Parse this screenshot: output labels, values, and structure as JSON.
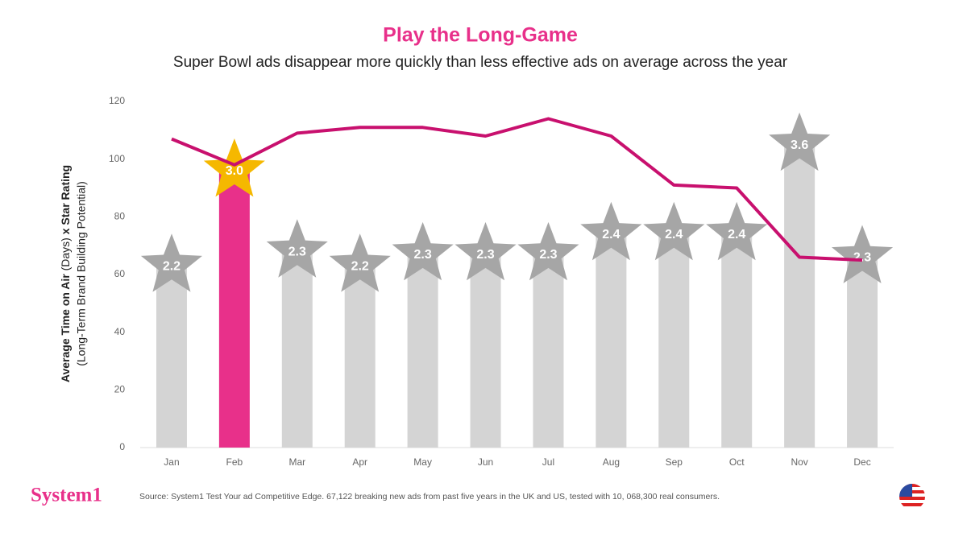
{
  "chart_data": {
    "type": "bar-line",
    "title": "Play the Long-Game",
    "subtitle": "Super Bowl ads disappear more quickly than less effective ads on average across the year",
    "y_label_bold_1": "Average Time on Air",
    "y_label_unit": "(Days)",
    "y_label_bold_2": "x Star Rating",
    "y_label_line_2": "(Long-Term Brand Building Potential)",
    "categories": [
      "Jan",
      "Feb",
      "Mar",
      "Apr",
      "May",
      "Jun",
      "Jul",
      "Aug",
      "Sep",
      "Oct",
      "Nov",
      "Dec"
    ],
    "bars": {
      "values": [
        63,
        96,
        68,
        63,
        67,
        67,
        67,
        74,
        74,
        74,
        105,
        66
      ],
      "colors": [
        "#d4d4d4",
        "#e8308a",
        "#d4d4d4",
        "#d4d4d4",
        "#d4d4d4",
        "#d4d4d4",
        "#d4d4d4",
        "#d4d4d4",
        "#d4d4d4",
        "#d4d4d4",
        "#d4d4d4",
        "#d4d4d4"
      ]
    },
    "stars": [
      {
        "value": 2.2,
        "label": "2.2"
      },
      {
        "value": 3.0,
        "label": "3.0"
      },
      {
        "value": 2.3,
        "label": "2.3"
      },
      {
        "value": 2.2,
        "label": "2.2"
      },
      {
        "value": 2.3,
        "label": "2.3"
      },
      {
        "value": 2.3,
        "label": "2.3"
      },
      {
        "value": 2.3,
        "label": "2.3"
      },
      {
        "value": 2.4,
        "label": "2.4"
      },
      {
        "value": 2.4,
        "label": "2.4"
      },
      {
        "value": 2.4,
        "label": "2.4"
      },
      {
        "value": 3.6,
        "label": "3.6"
      },
      {
        "value": 2.3,
        "label": "2.3"
      }
    ],
    "star_colors": [
      "#a6a6a6",
      "#f5b800",
      "#a6a6a6",
      "#a6a6a6",
      "#a6a6a6",
      "#a6a6a6",
      "#a6a6a6",
      "#a6a6a6",
      "#a6a6a6",
      "#a6a6a6",
      "#a6a6a6",
      "#a6a6a6"
    ],
    "line": {
      "color": "#c8106e",
      "values": [
        107,
        98,
        109,
        111,
        111,
        108,
        114,
        108,
        91,
        90,
        66,
        65
      ]
    },
    "ylim": [
      0,
      120
    ],
    "yticks": [
      0,
      20,
      40,
      60,
      80,
      100,
      120
    ]
  },
  "footer": {
    "logo": "System1",
    "source": "Source: System1 Test Your ad Competitive Edge. 67,122 breaking new ads from past five years in the UK and US, tested with 10, 068,300 real consumers."
  }
}
